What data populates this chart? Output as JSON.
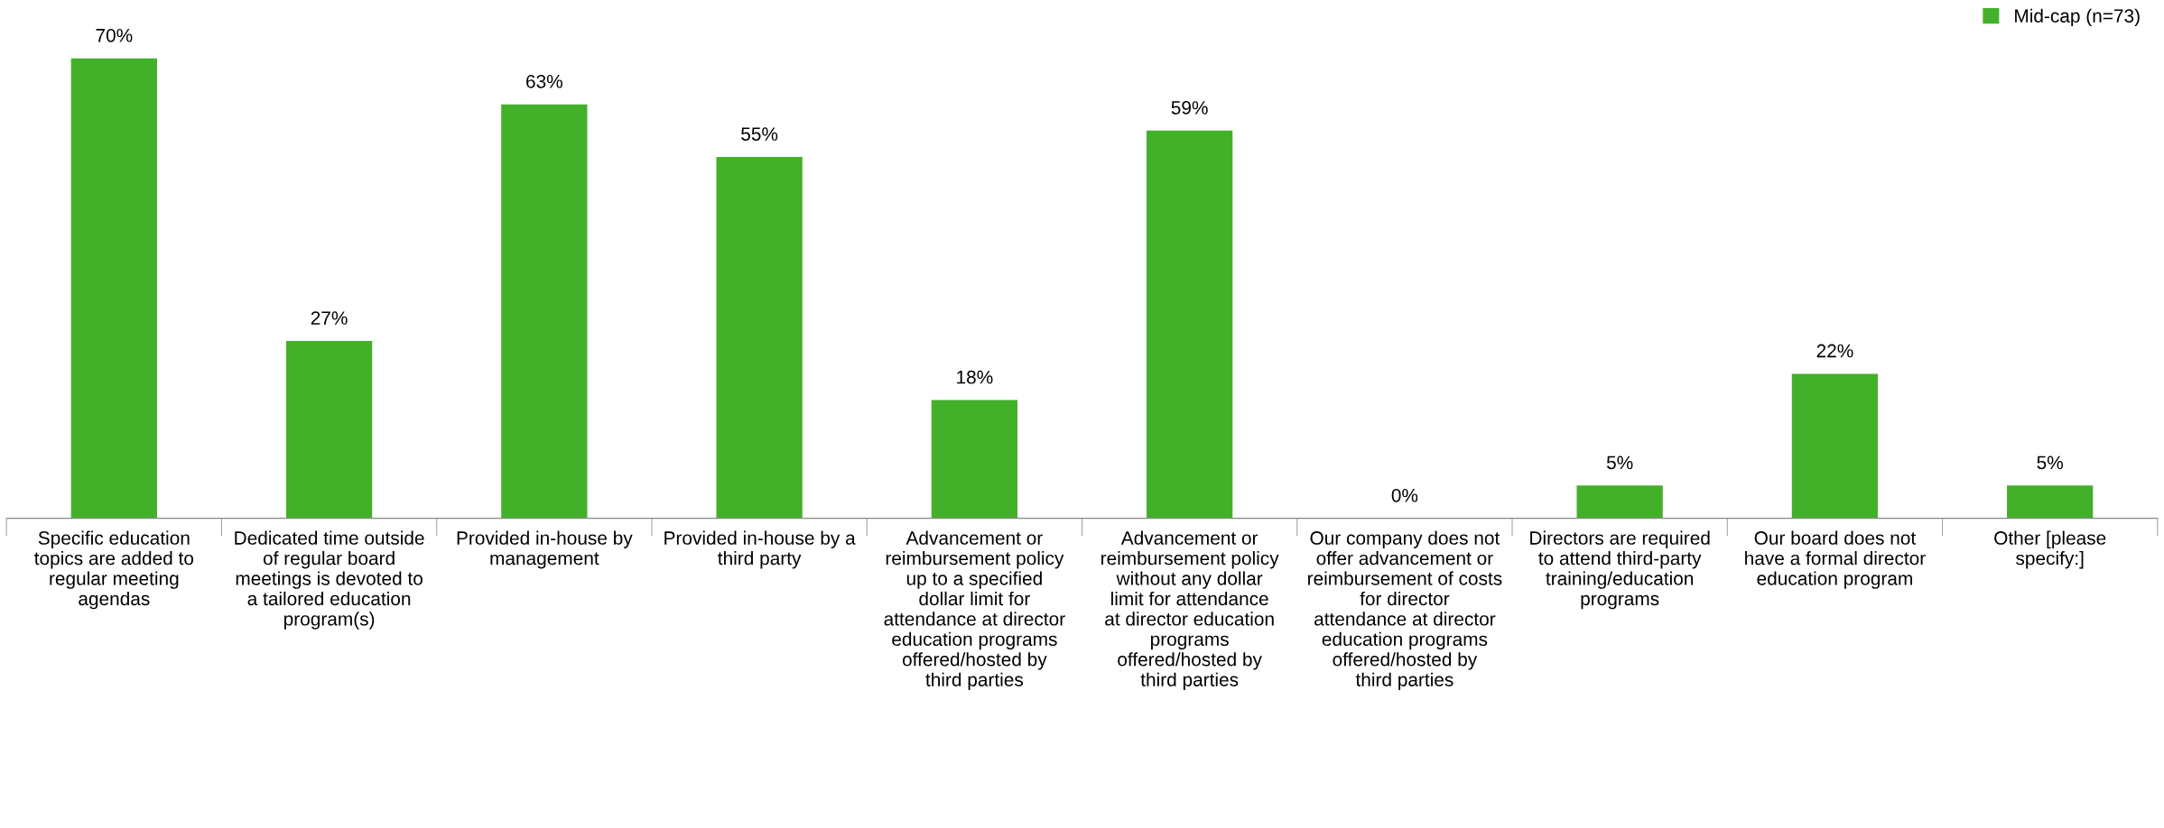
{
  "chart_data": {
    "type": "bar",
    "categories": [
      "Specific education topics are added to regular meeting agendas",
      "Dedicated time outside of regular board meetings is devoted to a tailored education program(s)",
      "Provided in-house by management",
      "Provided in-house by a third party",
      "Advancement or reimbursement policy up to a specified dollar limit for attendance at director education programs offered/hosted by third parties",
      "Advancement or reimbursement policy without any dollar limit for attendance at director education programs offered/hosted by third parties",
      "Our company does not offer advancement or reimbursement of costs for director attendance at director education programs offered/hosted by third parties",
      "Directors are required to attend third-party training/education programs",
      "Our board does not have a formal director education program",
      "Other [please specify:]"
    ],
    "series": [
      {
        "name": "Mid-cap (n=73)",
        "color": "#43b02a",
        "values": [
          70,
          27,
          63,
          55,
          18,
          59,
          0,
          5,
          22,
          5
        ],
        "value_labels": [
          "70%",
          "27%",
          "63%",
          "55%",
          "18%",
          "59%",
          "0%",
          "5%",
          "22%",
          "5%"
        ]
      }
    ],
    "legend": "top right",
    "grid": false
  }
}
